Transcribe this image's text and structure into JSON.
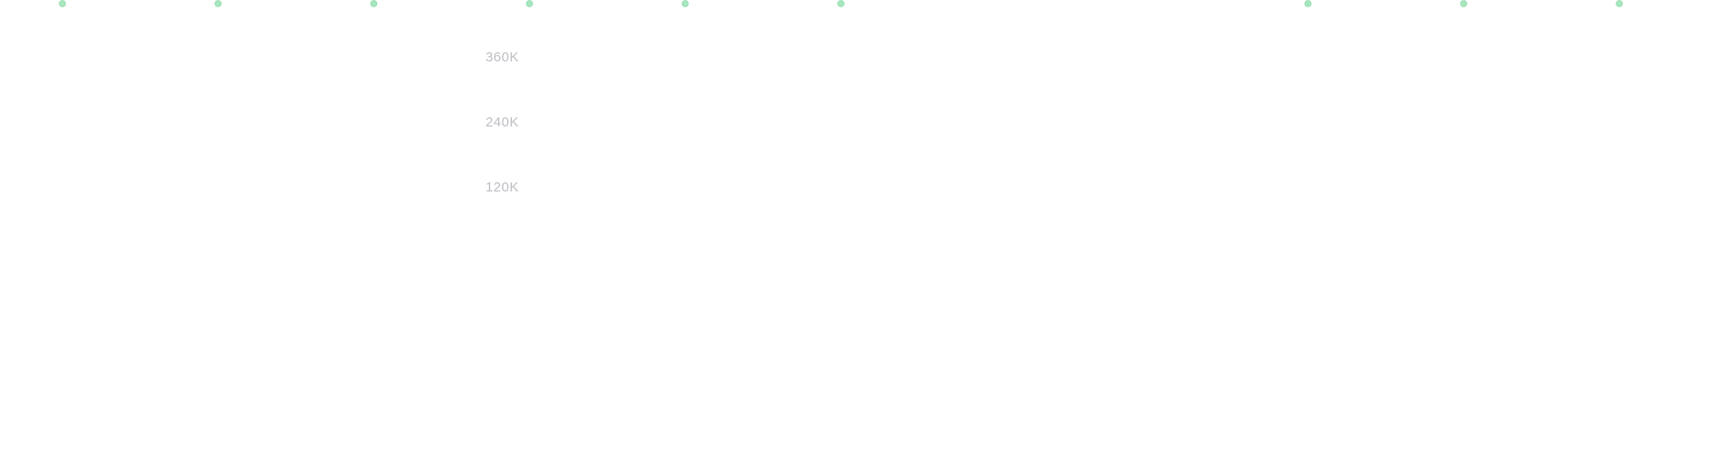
{
  "chart_data": {
    "type": "scatter",
    "title": "",
    "xlabel": "",
    "ylabel": "",
    "ylim": [
      0,
      480000
    ],
    "yticks": [
      {
        "value": 360000,
        "label": "360K"
      },
      {
        "value": 240000,
        "label": "240K"
      },
      {
        "value": 120000,
        "label": "120K"
      }
    ],
    "x": [
      1,
      2,
      3,
      4,
      5,
      6,
      7,
      8,
      9,
      10,
      11
    ],
    "series": [
      {
        "values": [
          480000,
          480000,
          480000,
          480000,
          480000,
          480000,
          null,
          null,
          480000,
          480000,
          480000
        ]
      }
    ],
    "grid": true,
    "colors": {
      "marker": "#a8e6bf",
      "marker_stroke": "#8fdcad",
      "vertical_line_start": "#dbe6f5",
      "vertical_line_end": "#f5dde3",
      "horizontal_grid": "#f7eef1"
    }
  }
}
